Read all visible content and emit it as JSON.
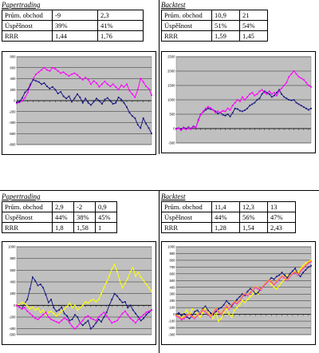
{
  "panels": [
    {
      "title": "Papertrading",
      "stats": [
        [
          "Prům. obchod",
          "-9",
          "2,3"
        ],
        [
          "Úspěšnost",
          "39%",
          "41%"
        ],
        [
          "RRR",
          "1,44",
          "1,76"
        ]
      ]
    },
    {
      "title": "Backtest",
      "stats": [
        [
          "Prům. obchod",
          "10,9",
          "21"
        ],
        [
          "Úspěšnost",
          "51%",
          "54%"
        ],
        [
          "RRR",
          "1,59",
          "1,45"
        ]
      ]
    },
    {
      "title": "Papertrading",
      "stats": [
        [
          "Prům. obchod",
          "2,9",
          "-2",
          "0,9"
        ],
        [
          "Úspěšnost",
          "44%",
          "38%",
          "45%"
        ],
        [
          "RRR",
          "1,8",
          "1,58",
          "1"
        ]
      ]
    },
    {
      "title": "Backtest",
      "stats": [
        [
          "Prům. obchod",
          "11,4",
          "12,3",
          "13"
        ],
        [
          "Úspěšnost",
          "44%",
          "56%",
          "47%"
        ],
        [
          "RRR",
          "1,28",
          "1,54",
          "2,43"
        ]
      ]
    }
  ],
  "colors": {
    "plot_bg": "#c0c0c0",
    "navy": "#1a1a80",
    "magenta": "#ff00ff",
    "yellow": "#ffff00",
    "orange": "#ff9933"
  },
  "chart_data": [
    {
      "type": "line",
      "ylim": [
        -800,
        800
      ],
      "yticks": [
        "800",
        "600",
        "400",
        "200",
        "0",
        "-200",
        "-400",
        "-600",
        "-800"
      ],
      "series": [
        {
          "color": "magenta",
          "values": [
            -50,
            -30,
            0,
            50,
            150,
            280,
            400,
            480,
            520,
            560,
            600,
            560,
            540,
            600,
            580,
            540,
            500,
            520,
            480,
            450,
            480,
            500,
            470,
            420,
            380,
            420,
            380,
            300,
            360,
            320,
            250,
            300,
            350,
            300,
            260,
            300,
            250,
            200,
            280,
            250,
            300,
            180,
            120,
            60,
            200,
            400,
            340,
            260,
            220,
            100
          ]
        },
        {
          "color": "navy",
          "values": [
            -30,
            -20,
            50,
            150,
            200,
            300,
            380,
            360,
            340,
            300,
            320,
            260,
            220,
            250,
            200,
            130,
            160,
            80,
            40,
            80,
            -20,
            40,
            120,
            60,
            -40,
            40,
            -40,
            -80,
            -20,
            40,
            0,
            -60,
            20,
            50,
            0,
            -60,
            -40,
            60,
            20,
            -40,
            -120,
            -220,
            -280,
            -320,
            -440,
            -500,
            -320,
            -420,
            -500,
            -600
          ]
        }
      ]
    },
    {
      "type": "line",
      "ylim": [
        -500,
        2500
      ],
      "yticks": [
        "2500",
        "2000",
        "1500",
        "1000",
        "500",
        "0",
        "-500"
      ],
      "series": [
        {
          "color": "navy",
          "values": [
            0,
            20,
            -40,
            40,
            0,
            50,
            0,
            80,
            40,
            300,
            500,
            580,
            650,
            700,
            680,
            650,
            600,
            520,
            560,
            480,
            450,
            500,
            420,
            550,
            700,
            680,
            620,
            600,
            640,
            700,
            800,
            850,
            900,
            1000,
            1050,
            1200,
            1300,
            1250,
            1200,
            1100,
            1150,
            1250,
            1350,
            1200,
            1100,
            1050,
            1000,
            980,
            1000,
            900,
            850,
            800,
            750,
            700,
            650,
            700
          ]
        },
        {
          "color": "magenta",
          "values": [
            -20,
            10,
            -60,
            20,
            -30,
            30,
            -20,
            60,
            30,
            280,
            480,
            600,
            700,
            760,
            720,
            650,
            560,
            600,
            560,
            620,
            600,
            700,
            650,
            800,
            900,
            1000,
            950,
            1100,
            1000,
            1100,
            1200,
            1250,
            1150,
            1200,
            1300,
            1350,
            1250,
            1200,
            1300,
            1200,
            1250,
            1150,
            1300,
            1400,
            1500,
            1600,
            1800,
            1900,
            2000,
            1900,
            1800,
            1750,
            1700,
            1600,
            1500,
            1450
          ]
        }
      ]
    },
    {
      "type": "line",
      "ylim": [
        -500,
        1000
      ],
      "yticks": [
        "1000",
        "800",
        "600",
        "400",
        "200",
        "0",
        "-200",
        "-400",
        "-500"
      ],
      "series": [
        {
          "color": "navy",
          "values": [
            0,
            -30,
            -60,
            30,
            100,
            280,
            480,
            420,
            340,
            360,
            300,
            180,
            50,
            100,
            -40,
            -100,
            -80,
            -30,
            -140,
            -180,
            -260,
            -240,
            -160,
            -200,
            -300,
            -340,
            -300,
            -260,
            -400,
            -360,
            -300,
            -240,
            -280,
            -200,
            -120,
            0,
            100,
            200,
            160,
            100,
            50,
            60,
            -40,
            0,
            -80,
            -140,
            -200,
            -260,
            -220,
            -160,
            -120,
            -80
          ]
        },
        {
          "color": "yellow",
          "values": [
            0,
            20,
            50,
            30,
            -10,
            -60,
            -30,
            -80,
            -50,
            -120,
            -80,
            -160,
            -120,
            -100,
            -140,
            -180,
            -150,
            -100,
            -60,
            -20,
            40,
            -40,
            0,
            -80,
            -40,
            0,
            60,
            40,
            80,
            100,
            60,
            100,
            200,
            300,
            400,
            500,
            620,
            700,
            580,
            420,
            300,
            380,
            460,
            580,
            640,
            500,
            560,
            480,
            420,
            360,
            300,
            240
          ]
        },
        {
          "color": "magenta",
          "values": [
            0,
            -30,
            -60,
            -40,
            -100,
            -140,
            -180,
            -220,
            -240,
            -200,
            -160,
            -120,
            -200,
            -240,
            -260,
            -280,
            -300,
            -260,
            -220,
            -240,
            -300,
            -360,
            -400,
            -360,
            -300,
            -260,
            -200,
            -180,
            -220,
            -240,
            -260,
            -200,
            -160,
            -120,
            -180,
            -240,
            -300,
            -280,
            -260,
            -200,
            -140,
            -100,
            -160,
            -220,
            -260,
            -300,
            -240,
            -200,
            -160,
            -120,
            -100,
            -80
          ]
        }
      ]
    },
    {
      "type": "line",
      "ylim": [
        -300,
        1000
      ],
      "yticks": [
        "1000",
        "900",
        "800",
        "700",
        "600",
        "500",
        "400",
        "300",
        "200",
        "100",
        "0",
        "-100",
        "-200",
        "-300"
      ],
      "series": [
        {
          "color": "yellow",
          "values": [
            0,
            -40,
            -60,
            20,
            60,
            -20,
            80,
            40,
            0,
            -40,
            20,
            100,
            60,
            -20,
            -60,
            40,
            -100,
            -60,
            20,
            80,
            0,
            -40,
            60,
            100,
            140,
            200,
            180,
            220,
            260,
            300,
            340,
            300,
            380,
            420,
            460,
            500,
            440,
            400,
            380,
            420,
            480,
            520,
            580,
            560,
            600,
            640,
            620,
            680,
            720,
            760,
            780,
            800
          ]
        },
        {
          "color": "navy",
          "values": [
            0,
            20,
            -20,
            10,
            -40,
            -60,
            -20,
            40,
            60,
            20,
            80,
            120,
            60,
            20,
            0,
            40,
            80,
            100,
            140,
            200,
            160,
            120,
            180,
            220,
            260,
            300,
            280,
            340,
            380,
            360,
            300,
            320,
            380,
            420,
            460,
            500,
            540,
            520,
            560,
            580,
            620,
            580,
            540,
            600,
            640,
            680,
            600,
            560,
            620,
            660,
            700,
            720
          ]
        },
        {
          "color": "magenta",
          "values": [
            -20,
            -40,
            -80,
            -60,
            -20,
            0,
            -40,
            -60,
            -20,
            20,
            60,
            40,
            0,
            -40,
            20,
            80,
            40,
            0,
            60,
            120,
            80,
            140,
            180,
            160,
            200,
            260,
            300,
            280,
            320,
            360,
            400,
            380,
            360,
            420,
            460,
            500,
            480,
            440,
            480,
            520,
            560,
            540,
            500,
            560,
            600,
            620,
            580,
            640,
            680,
            720,
            760,
            780
          ]
        },
        {
          "color": "orange",
          "values": [
            -10,
            -30,
            -60,
            -40,
            -10,
            10,
            -30,
            -50,
            -10,
            30,
            70,
            50,
            10,
            -30,
            30,
            90,
            50,
            10,
            70,
            130,
            90,
            150,
            190,
            170,
            210,
            270,
            310,
            290,
            330,
            370,
            410,
            390,
            370,
            430,
            470,
            510,
            490,
            450,
            490,
            530,
            570,
            550,
            510,
            570,
            610,
            630,
            590,
            650,
            690,
            730,
            770,
            790
          ]
        }
      ]
    }
  ]
}
